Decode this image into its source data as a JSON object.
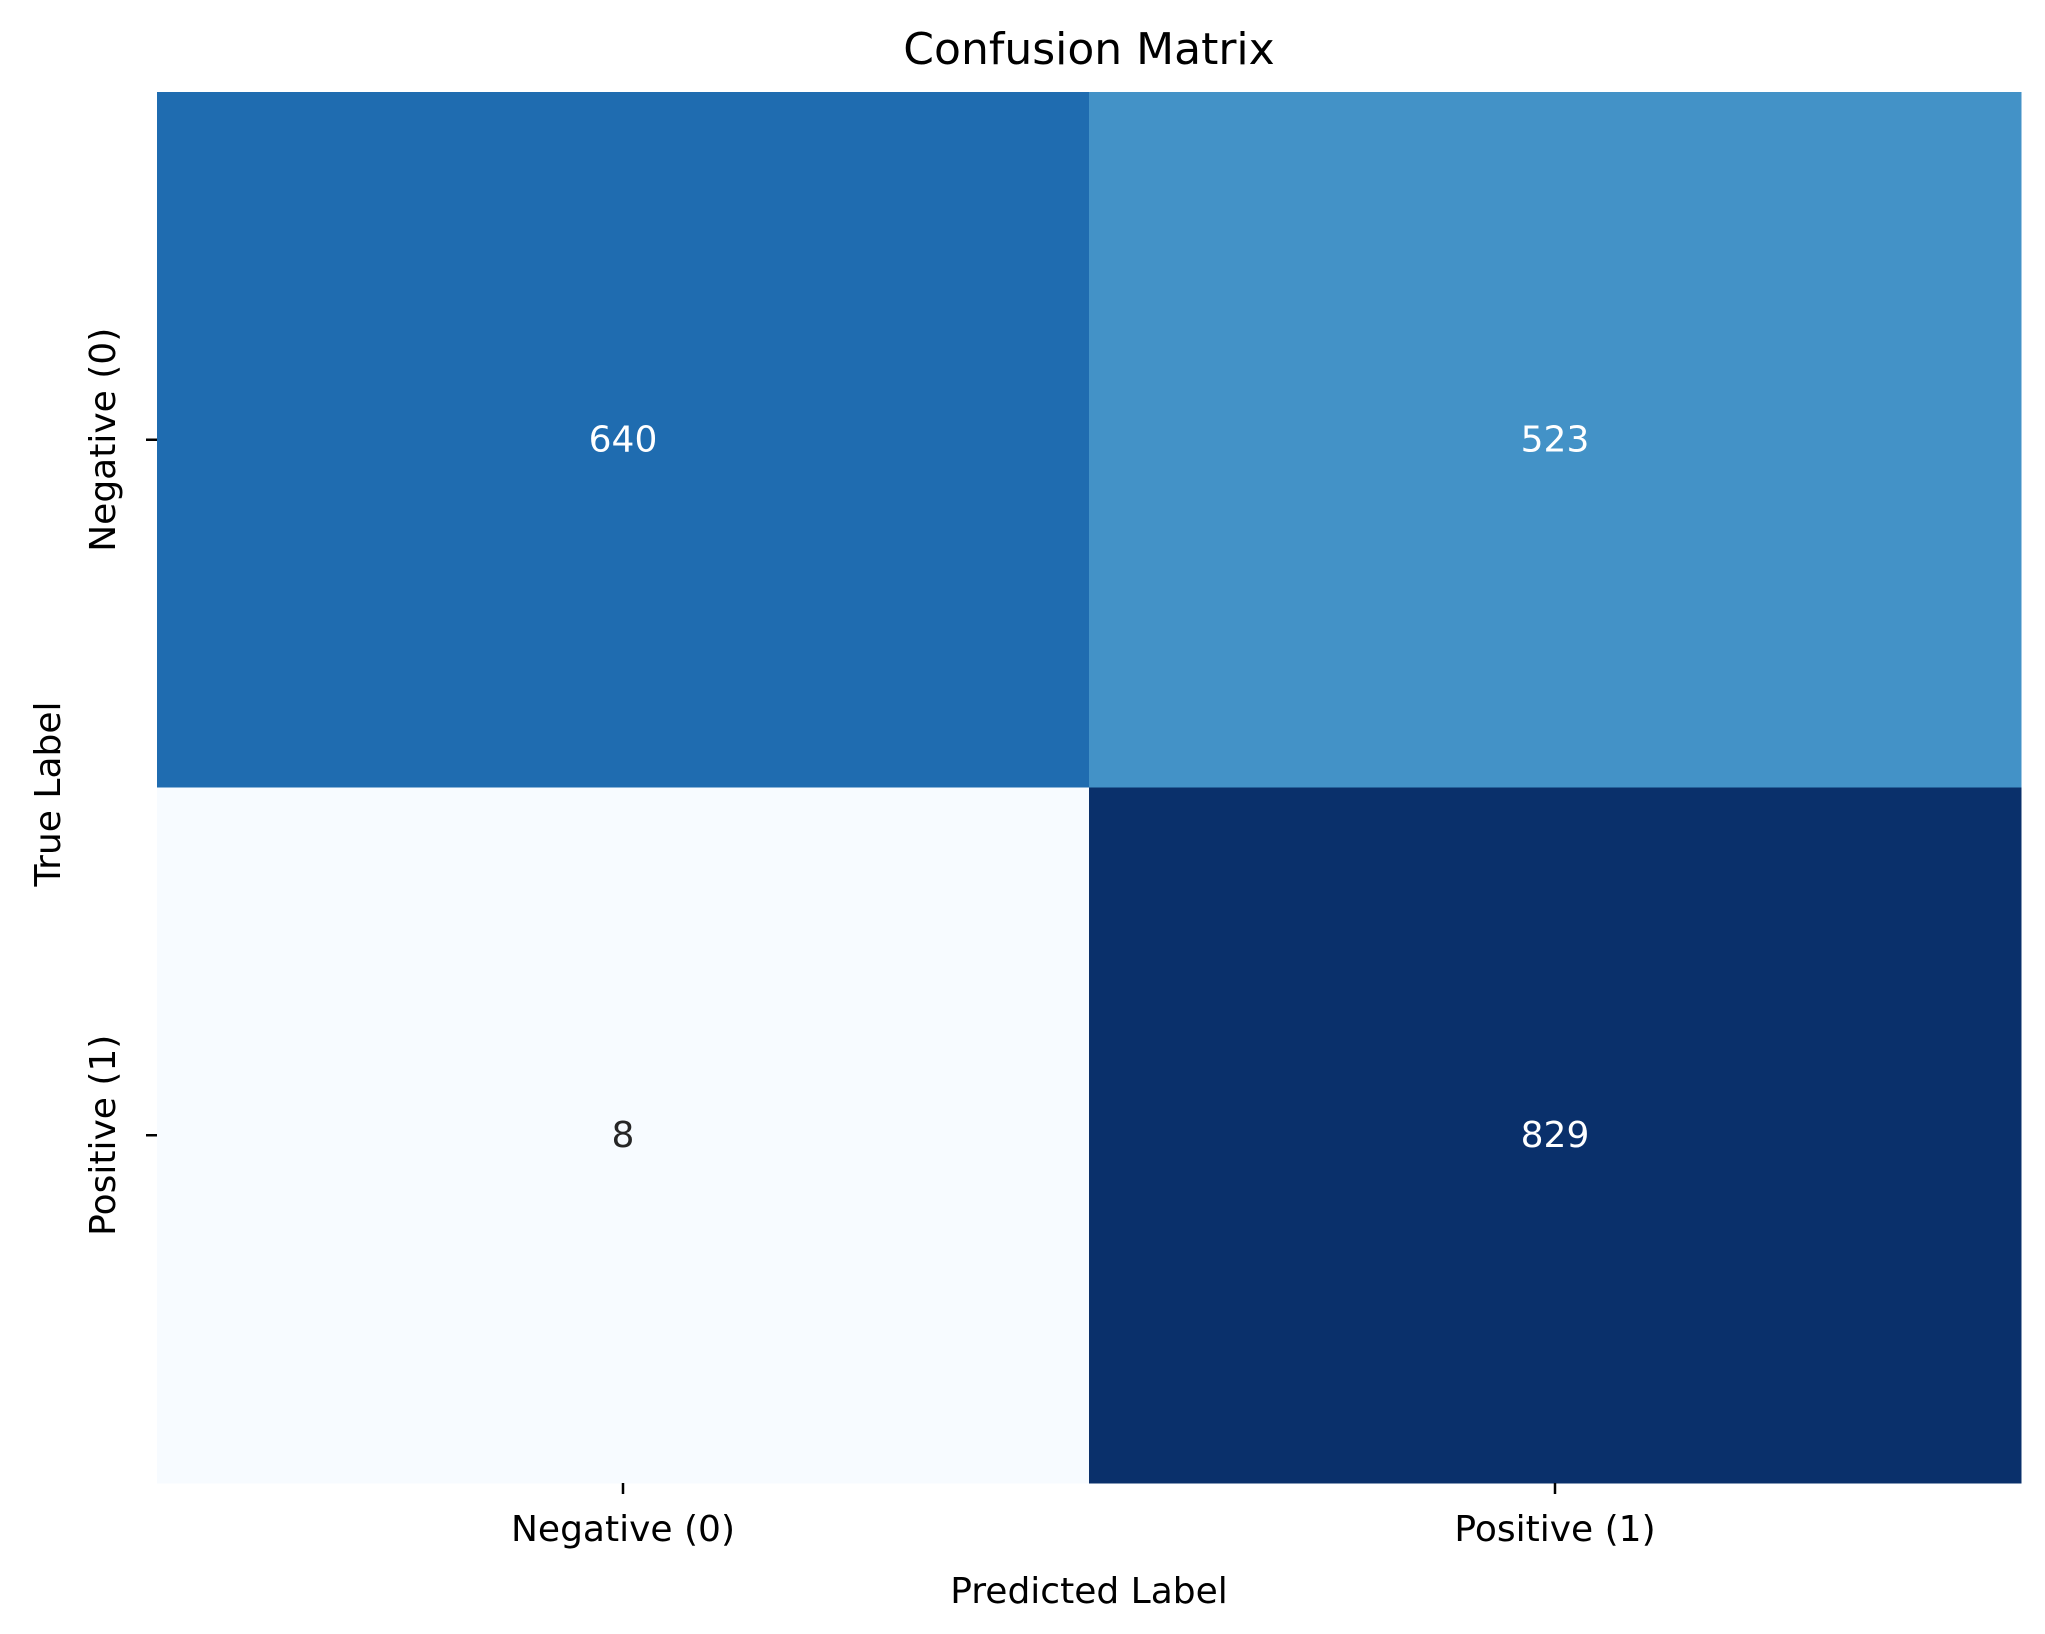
{
  "chart_data": {
    "type": "heatmap",
    "title": "Confusion Matrix",
    "xlabel": "Predicted Label",
    "ylabel": "True Label",
    "x_categories": [
      "Negative (0)",
      "Positive (1)"
    ],
    "y_categories": [
      "Negative (0)",
      "Positive (1)"
    ],
    "values": [
      [
        640,
        523
      ],
      [
        8,
        829
      ]
    ],
    "colormap": "Blues",
    "cell_colors": [
      [
        "#1f6cb0",
        "#4392c7"
      ],
      [
        "#f7fbff",
        "#0a306b"
      ]
    ],
    "text_colors": [
      [
        "#ffffff",
        "#ffffff"
      ],
      [
        "#262626",
        "#ffffff"
      ]
    ],
    "colorbar": false
  }
}
